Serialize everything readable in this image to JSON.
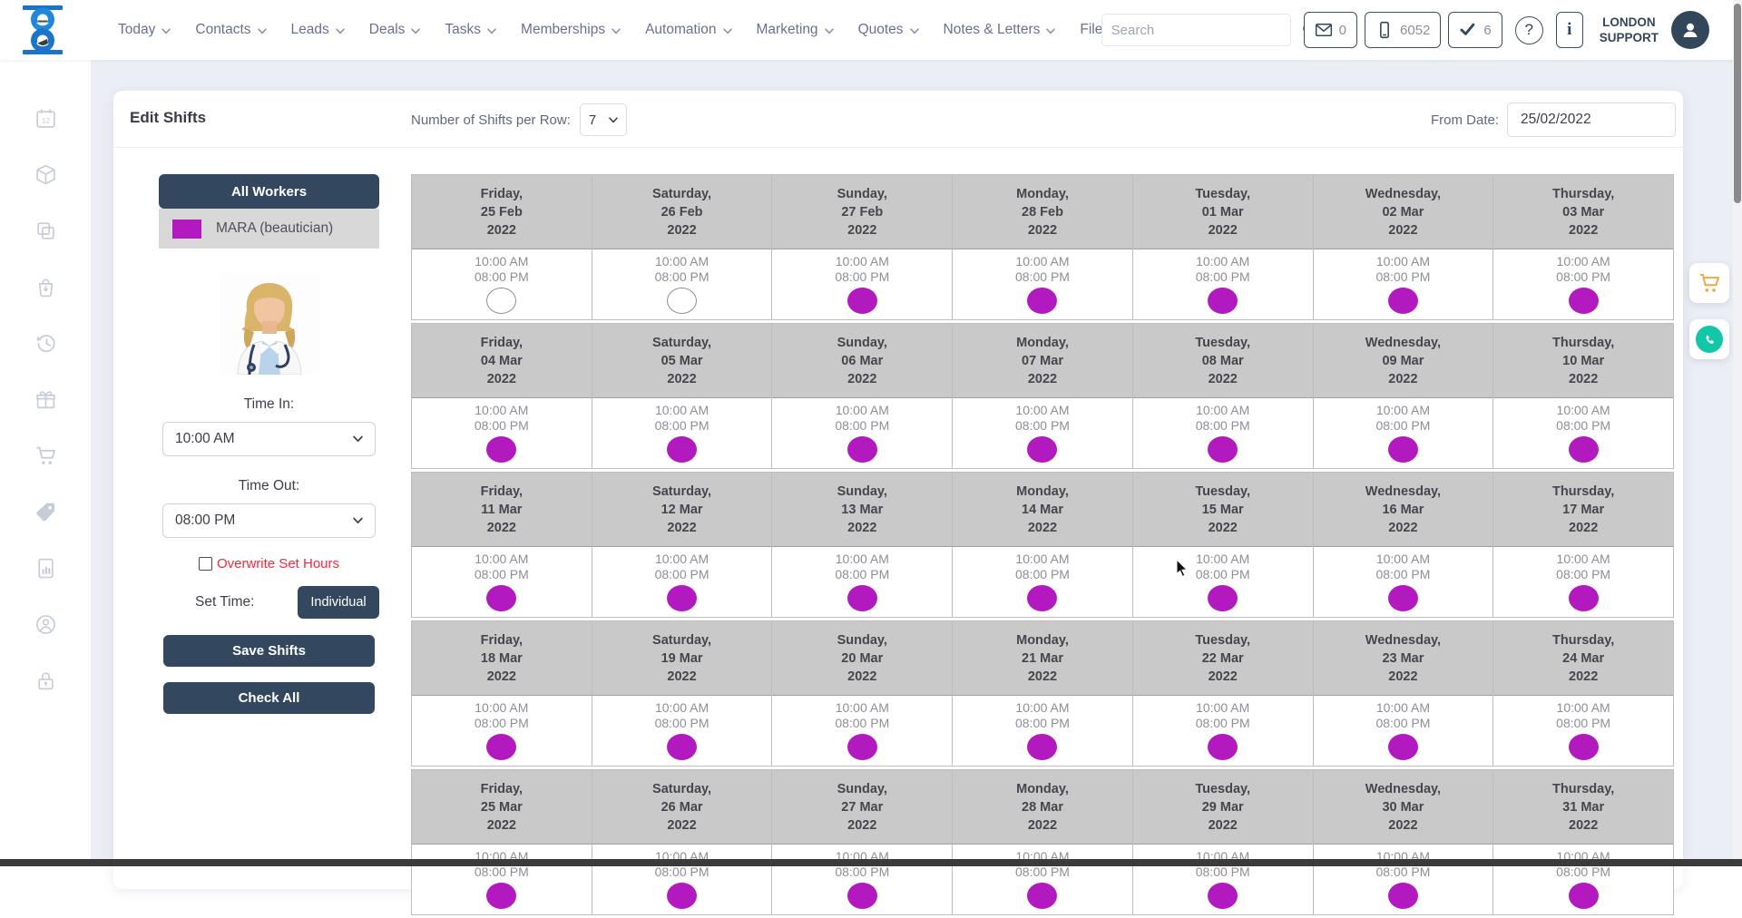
{
  "topbar": {
    "logo": "hourglass-logo",
    "nav": [
      {
        "label": "Today",
        "has_dropdown": true
      },
      {
        "label": "Contacts",
        "has_dropdown": true
      },
      {
        "label": "Leads",
        "has_dropdown": true
      },
      {
        "label": "Deals",
        "has_dropdown": true
      },
      {
        "label": "Tasks",
        "has_dropdown": true
      },
      {
        "label": "Memberships",
        "has_dropdown": true
      },
      {
        "label": "Automation",
        "has_dropdown": true
      },
      {
        "label": "Marketing",
        "has_dropdown": true
      },
      {
        "label": "Quotes",
        "has_dropdown": true
      },
      {
        "label": "Notes & Letters",
        "has_dropdown": true
      },
      {
        "label": "Files",
        "has_dropdown": false
      }
    ],
    "search_placeholder": "Search",
    "badges": [
      {
        "icon": "envelope",
        "count": "0"
      },
      {
        "icon": "phone",
        "count": "6052"
      },
      {
        "icon": "check",
        "count": "6"
      }
    ],
    "help_label": "?",
    "info_label": "i",
    "account": {
      "line1": "LONDON",
      "line2": "SUPPORT"
    }
  },
  "side_rail": {
    "icons": [
      "calendar",
      "package",
      "copy",
      "shopping-bag",
      "history",
      "gift",
      "cart",
      "price-tag",
      "report",
      "user-circle",
      "lock"
    ]
  },
  "toolbar": {
    "title": "Edit Shifts",
    "shifts_per_row_label": "Number of Shifts per Row:",
    "shifts_per_row_value": "7",
    "from_date_label": "From Date:",
    "from_date_value": "25/02/2022"
  },
  "worker_panel": {
    "all_workers_label": "All Workers",
    "workers": [
      {
        "name": "MARA (beautician)",
        "color": "#b21ac0"
      }
    ],
    "time_in_label": "Time In:",
    "time_in_value": "10:00 AM",
    "time_out_label": "Time Out:",
    "time_out_value": "08:00 PM",
    "overwrite_label": "Overwrite Set Hours",
    "overwrite_checked": false,
    "set_time_label": "Set Time:",
    "set_time_button": "Individual",
    "save_button": "Save Shifts",
    "check_all_button": "Check All"
  },
  "calendar": {
    "time_in": "10:00 AM",
    "time_out": "08:00 PM",
    "weeks": [
      {
        "cells": [
          {
            "day": "Friday,",
            "date": "25 Feb",
            "year": "2022",
            "checked": false
          },
          {
            "day": "Saturday,",
            "date": "26 Feb",
            "year": "2022",
            "checked": false
          },
          {
            "day": "Sunday,",
            "date": "27 Feb",
            "year": "2022",
            "checked": true
          },
          {
            "day": "Monday,",
            "date": "28 Feb",
            "year": "2022",
            "checked": true
          },
          {
            "day": "Tuesday,",
            "date": "01 Mar",
            "year": "2022",
            "checked": true
          },
          {
            "day": "Wednesday,",
            "date": "02 Mar",
            "year": "2022",
            "checked": true
          },
          {
            "day": "Thursday,",
            "date": "03 Mar",
            "year": "2022",
            "checked": true
          }
        ]
      },
      {
        "cells": [
          {
            "day": "Friday,",
            "date": "04 Mar",
            "year": "2022",
            "checked": true
          },
          {
            "day": "Saturday,",
            "date": "05 Mar",
            "year": "2022",
            "checked": true
          },
          {
            "day": "Sunday,",
            "date": "06 Mar",
            "year": "2022",
            "checked": true
          },
          {
            "day": "Monday,",
            "date": "07 Mar",
            "year": "2022",
            "checked": true
          },
          {
            "day": "Tuesday,",
            "date": "08 Mar",
            "year": "2022",
            "checked": true
          },
          {
            "day": "Wednesday,",
            "date": "09 Mar",
            "year": "2022",
            "checked": true
          },
          {
            "day": "Thursday,",
            "date": "10 Mar",
            "year": "2022",
            "checked": true
          }
        ]
      },
      {
        "cells": [
          {
            "day": "Friday,",
            "date": "11 Mar",
            "year": "2022",
            "checked": true
          },
          {
            "day": "Saturday,",
            "date": "12 Mar",
            "year": "2022",
            "checked": true
          },
          {
            "day": "Sunday,",
            "date": "13 Mar",
            "year": "2022",
            "checked": true
          },
          {
            "day": "Monday,",
            "date": "14 Mar",
            "year": "2022",
            "checked": true
          },
          {
            "day": "Tuesday,",
            "date": "15 Mar",
            "year": "2022",
            "checked": true
          },
          {
            "day": "Wednesday,",
            "date": "16 Mar",
            "year": "2022",
            "checked": true
          },
          {
            "day": "Thursday,",
            "date": "17 Mar",
            "year": "2022",
            "checked": true
          }
        ]
      },
      {
        "cells": [
          {
            "day": "Friday,",
            "date": "18 Mar",
            "year": "2022",
            "checked": true
          },
          {
            "day": "Saturday,",
            "date": "19 Mar",
            "year": "2022",
            "checked": true
          },
          {
            "day": "Sunday,",
            "date": "20 Mar",
            "year": "2022",
            "checked": true
          },
          {
            "day": "Monday,",
            "date": "21 Mar",
            "year": "2022",
            "checked": true
          },
          {
            "day": "Tuesday,",
            "date": "22 Mar",
            "year": "2022",
            "checked": true
          },
          {
            "day": "Wednesday,",
            "date": "23 Mar",
            "year": "2022",
            "checked": true
          },
          {
            "day": "Thursday,",
            "date": "24 Mar",
            "year": "2022",
            "checked": true
          }
        ]
      },
      {
        "cells": [
          {
            "day": "Friday,",
            "date": "25 Mar",
            "year": "2022",
            "checked": true
          },
          {
            "day": "Saturday,",
            "date": "26 Mar",
            "year": "2022",
            "checked": true
          },
          {
            "day": "Sunday,",
            "date": "27 Mar",
            "year": "2022",
            "checked": true
          },
          {
            "day": "Monday,",
            "date": "28 Mar",
            "year": "2022",
            "checked": true
          },
          {
            "day": "Tuesday,",
            "date": "29 Mar",
            "year": "2022",
            "checked": true
          },
          {
            "day": "Wednesday,",
            "date": "30 Mar",
            "year": "2022",
            "checked": true
          },
          {
            "day": "Thursday,",
            "date": "31 Mar",
            "year": "2022",
            "checked": true
          }
        ]
      }
    ]
  },
  "floating_buttons": [
    {
      "icon": "cart",
      "color": "#f0a93c"
    },
    {
      "icon": "whatsapp-phone",
      "color": "#12c7a7"
    }
  ],
  "colors": {
    "accent_navy": "#33485e",
    "shift_on": "#b21ac0",
    "overwrite_red": "#f4293c",
    "calendar_header_bg": "#c9c9c9",
    "page_bg": "#eceef6"
  }
}
